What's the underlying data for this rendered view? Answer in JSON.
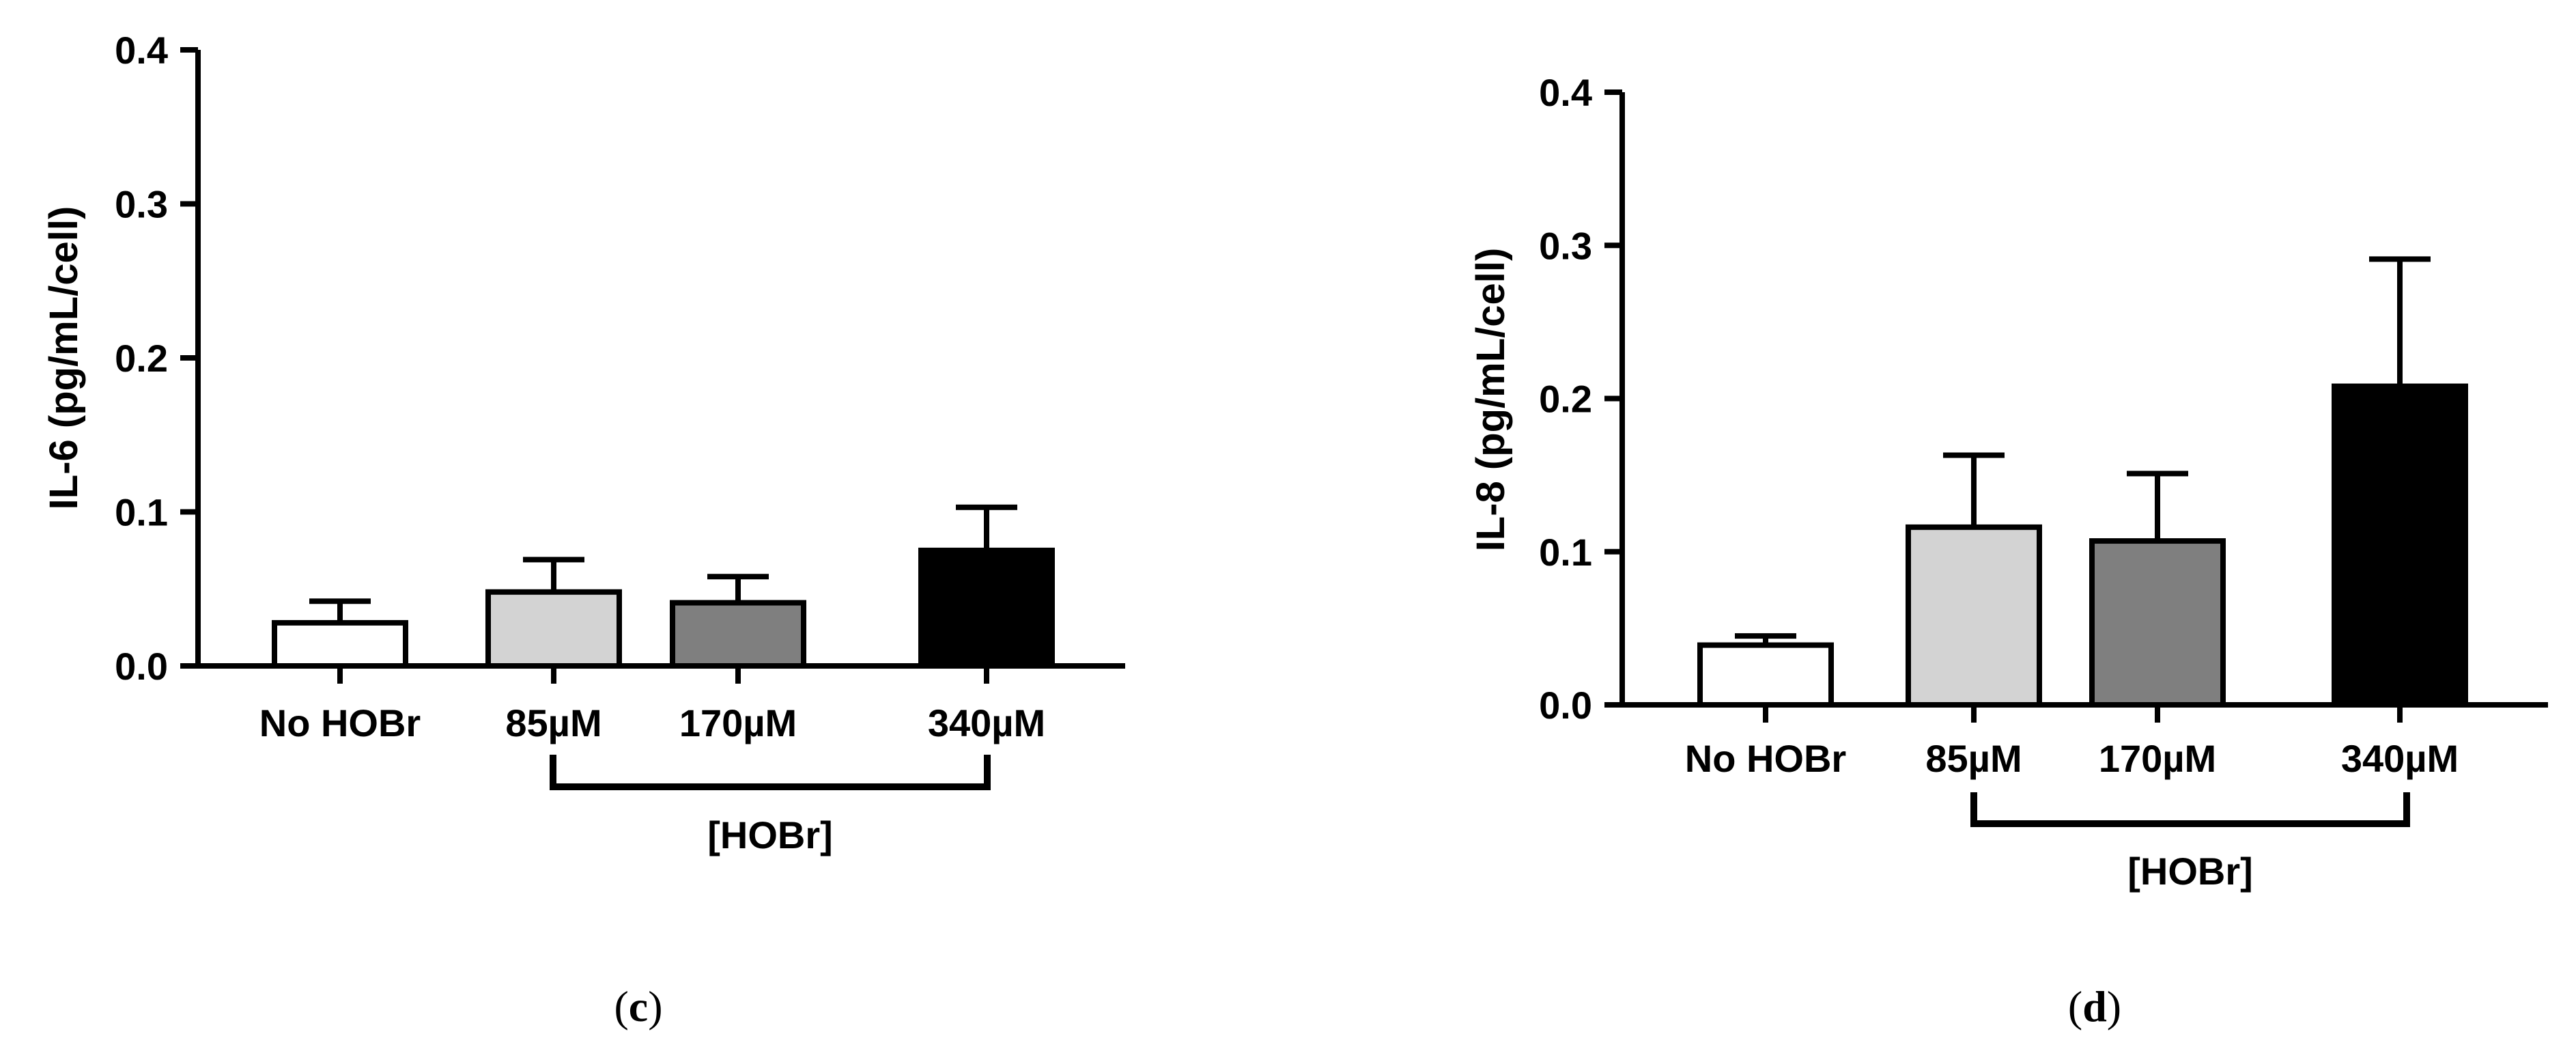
{
  "colors": {
    "bar_fills": [
      "#ffffff",
      "#d3d3d3",
      "#7f7f7f",
      "#000000"
    ],
    "stroke": "#000000"
  },
  "chart_data": [
    {
      "type": "bar",
      "panel_label": "c",
      "categories": [
        "No HOBr",
        "85µM",
        "170µM",
        "340µM"
      ],
      "values": [
        0.028,
        0.048,
        0.041,
        0.075
      ],
      "error_upper": [
        0.042,
        0.069,
        0.058,
        0.103
      ],
      "ylabel": "IL-6 (pg/mL/cell)",
      "xlabel": "",
      "ylim": [
        0,
        0.4
      ],
      "yticks": [
        0.0,
        0.1,
        0.2,
        0.3,
        0.4
      ],
      "ytick_labels": [
        "0.0",
        "0.1",
        "0.2",
        "0.3",
        "0.4"
      ],
      "group_bracket": {
        "label": "[HOBr]",
        "from": "85µM",
        "to": "340µM"
      },
      "grid": false,
      "legend": "none"
    },
    {
      "type": "bar",
      "panel_label": "d",
      "categories": [
        "No HOBr",
        "85µM",
        "170µM",
        "340µM"
      ],
      "values": [
        0.039,
        0.116,
        0.107,
        0.208
      ],
      "error_upper": [
        0.045,
        0.163,
        0.151,
        0.291
      ],
      "ylabel": "IL-8 (pg/mL/cell)",
      "xlabel": "",
      "ylim": [
        0,
        0.4
      ],
      "yticks": [
        0.0,
        0.1,
        0.2,
        0.3,
        0.4
      ],
      "ytick_labels": [
        "0.0",
        "0.1",
        "0.2",
        "0.3",
        "0.4"
      ],
      "group_bracket": {
        "label": "[HOBr]",
        "from": "85µM",
        "to": "340µM"
      },
      "grid": false,
      "legend": "none"
    }
  ]
}
